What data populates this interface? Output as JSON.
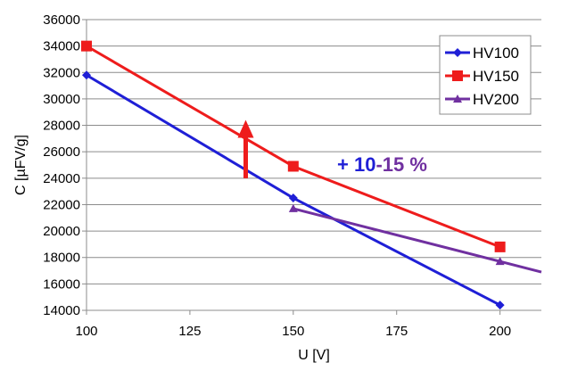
{
  "chart_data": {
    "type": "line",
    "xlabel": "U [V]",
    "ylabel": "C [µFV/g]",
    "xlim": [
      100,
      210
    ],
    "ylim": [
      14000,
      36000
    ],
    "x_ticks": [
      "100",
      "125",
      "150",
      "175",
      "200"
    ],
    "y_ticks": [
      "14000",
      "16000",
      "18000",
      "20000",
      "22000",
      "24000",
      "26000",
      "28000",
      "30000",
      "32000",
      "34000",
      "36000"
    ],
    "grid": "horizontal",
    "legend_position": "top-right",
    "series": [
      {
        "name": "HV100",
        "color": "#1f1fd6",
        "marker": "diamond",
        "x": [
          100,
          150,
          200
        ],
        "y": [
          31800,
          22500,
          14400
        ],
        "trend_end": null
      },
      {
        "name": "HV150",
        "color": "#ee1c1c",
        "marker": "square",
        "x": [
          100,
          150,
          200
        ],
        "y": [
          34000,
          24900,
          18800
        ],
        "trend_end": null
      },
      {
        "name": "HV200",
        "color": "#7030a0",
        "marker": "triangle",
        "x": [
          150,
          200
        ],
        "y": [
          21700,
          17700
        ],
        "trend_end": [
          210,
          16900
        ]
      }
    ],
    "annotation": {
      "parts": [
        {
          "text": "+ 10",
          "color": "#1f1fd6"
        },
        {
          "text": "-15 %",
          "color": "#7030a0"
        }
      ]
    },
    "arrow": {
      "color": "#ee1c1c",
      "x": 138.5,
      "y_from": 24000,
      "y_to": 28000
    }
  }
}
